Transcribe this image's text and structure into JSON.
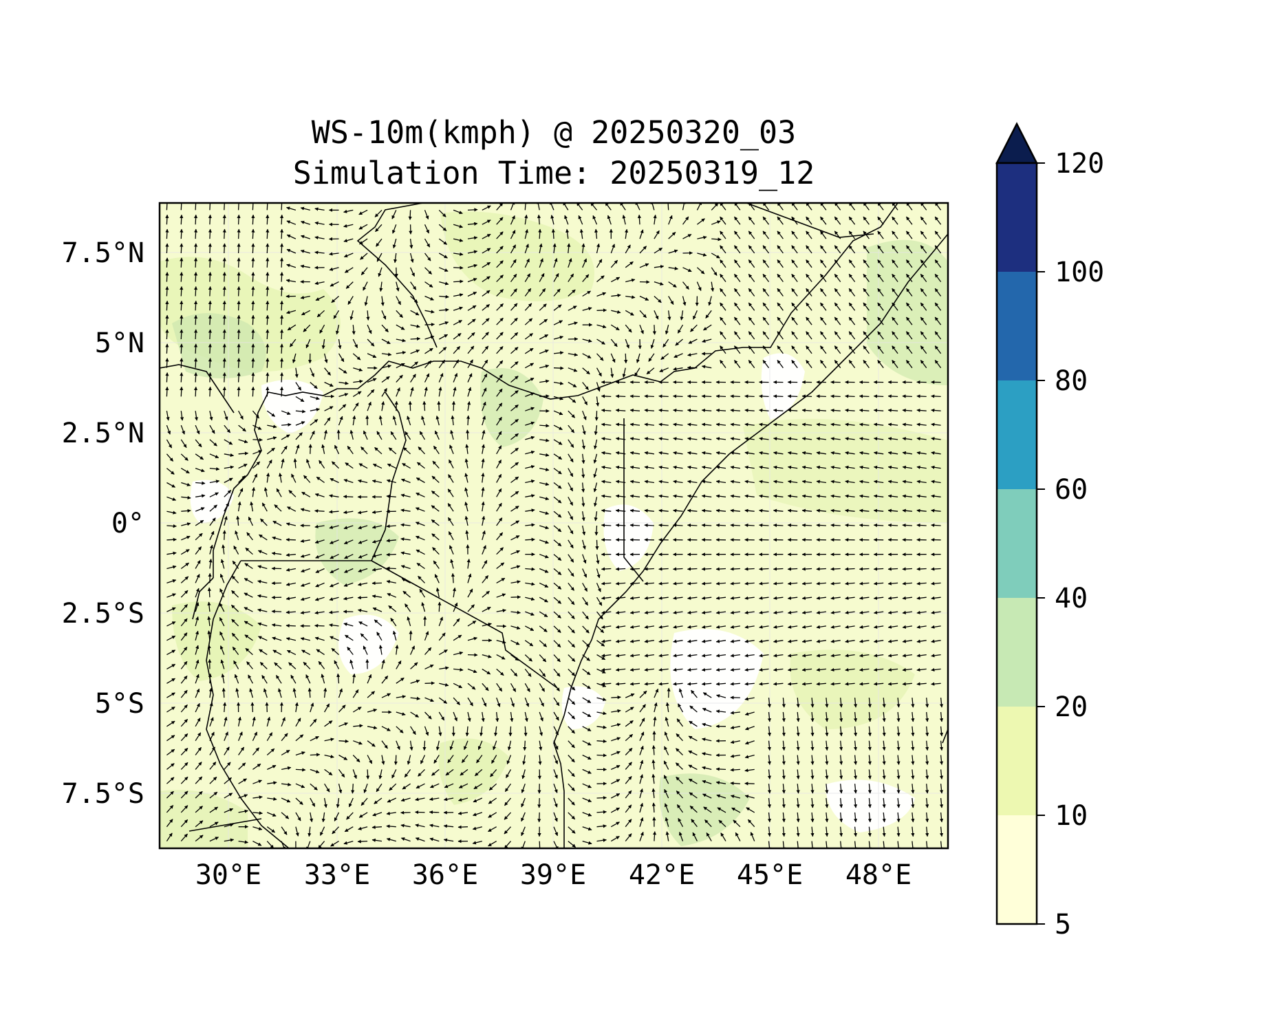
{
  "title": {
    "line1": "WS-10m(kmph) @ 20250320_03",
    "line2": "Simulation Time: 20250319_12"
  },
  "map": {
    "lon_ticks": [
      "30°E",
      "33°E",
      "36°E",
      "39°E",
      "42°E",
      "45°E",
      "48°E"
    ],
    "lat_ticks": [
      "7.5°N",
      "5°N",
      "2.5°N",
      "0°",
      "2.5°S",
      "5°S",
      "7.5°S"
    ],
    "background_color": "#f7fcd2"
  },
  "colorbar": {
    "ticks": [
      "120",
      "100",
      "80",
      "60",
      "40",
      "20",
      "10",
      "5"
    ],
    "colors": [
      "#ffffd9",
      "#edf8b1",
      "#c7e9b4",
      "#7fcdbb",
      "#2c9fc3",
      "#2367ac",
      "#1d2f7f"
    ],
    "extend_color": "#0b1d4e"
  },
  "chart_data": {
    "type": "heatmap",
    "title": "WS-10m(kmph) @ 20250320_03",
    "subtitle": "Simulation Time: 20250319_12",
    "xlim": [
      27.8,
      49.7
    ],
    "ylim": [
      -9.0,
      8.9
    ],
    "x_ticks": [
      30,
      33,
      36,
      39,
      42,
      45,
      48
    ],
    "y_ticks": [
      7.5,
      5,
      2.5,
      0,
      -2.5,
      -5,
      -7.5
    ],
    "color_levels": [
      5,
      10,
      20,
      40,
      60,
      80,
      100,
      120
    ],
    "colorbar_extend": "max",
    "overlay": "wind vectors (quiver)",
    "grid": true
  }
}
